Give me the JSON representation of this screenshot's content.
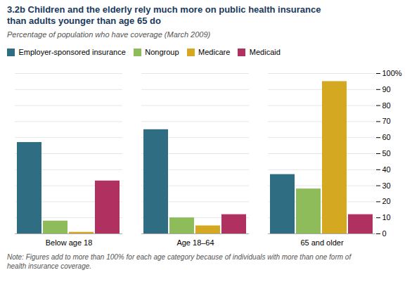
{
  "chart_data": {
    "type": "bar",
    "title": "3.2b  Children and the elderly rely much more on public health insurance\nthan adults younger than age 65 do",
    "subtitle": "Percentage of population who have coverage (March 2009)",
    "note": "Note: Figures add to more than 100% for each age category because of individuals with more than one form of\nhealth insurance coverage.",
    "categories": [
      "Below age 18",
      "Age 18–64",
      "65 and older"
    ],
    "series": [
      {
        "name": "Employer-sponsored insurance",
        "color": "#2e6d82",
        "values": [
          57,
          65,
          37
        ]
      },
      {
        "name": "Nongroup",
        "color": "#8fbc5a",
        "values": [
          8,
          10,
          28
        ]
      },
      {
        "name": "Medicare",
        "color": "#d4a820",
        "values": [
          1,
          5,
          95
        ]
      },
      {
        "name": "Medicaid",
        "color": "#b03060",
        "values": [
          33,
          12,
          12
        ]
      }
    ],
    "ylim": [
      0,
      100
    ],
    "yticks": [
      0,
      10,
      20,
      30,
      40,
      50,
      60,
      70,
      80,
      90,
      {
        "value": 100,
        "label": "100%"
      }
    ],
    "grid": true,
    "legend": "upper left"
  }
}
